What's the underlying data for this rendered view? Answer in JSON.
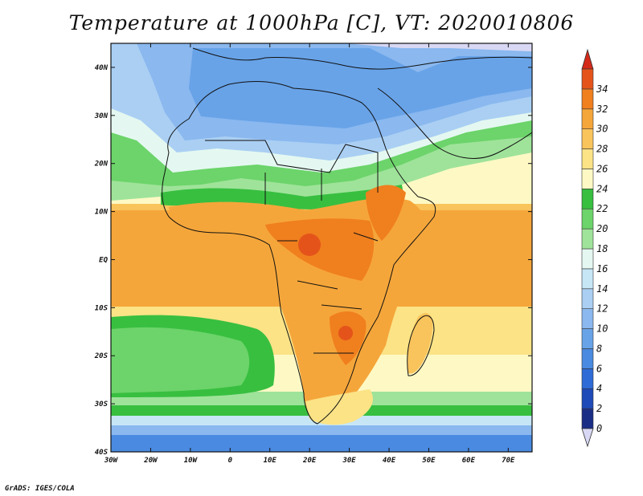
{
  "title": "Temperature at 1000hPa [C], VT: 2020010806",
  "footer": "GrADS: IGES/COLA",
  "map": {
    "lon_range": [
      -30,
      76
    ],
    "lat_range": [
      -40,
      45
    ],
    "lon_ticks": [
      {
        "value": -30,
        "label": "30W"
      },
      {
        "value": -20,
        "label": "20W"
      },
      {
        "value": -10,
        "label": "10W"
      },
      {
        "value": 0,
        "label": "0"
      },
      {
        "value": 10,
        "label": "10E"
      },
      {
        "value": 20,
        "label": "20E"
      },
      {
        "value": 30,
        "label": "30E"
      },
      {
        "value": 40,
        "label": "40E"
      },
      {
        "value": 50,
        "label": "50E"
      },
      {
        "value": 60,
        "label": "60E"
      },
      {
        "value": 70,
        "label": "70E"
      }
    ],
    "lat_ticks": [
      {
        "value": 40,
        "label": "40N"
      },
      {
        "value": 30,
        "label": "30N"
      },
      {
        "value": 20,
        "label": "20N"
      },
      {
        "value": 10,
        "label": "10N"
      },
      {
        "value": 0,
        "label": "EQ"
      },
      {
        "value": -10,
        "label": "10S"
      },
      {
        "value": -20,
        "label": "20S"
      },
      {
        "value": -30,
        "label": "30S"
      },
      {
        "value": -40,
        "label": "40S"
      }
    ],
    "below_min_color": "#d8d8f4",
    "above_max_color": "#d42a1a"
  },
  "colorbar": {
    "levels": [
      0,
      2,
      4,
      6,
      8,
      10,
      12,
      14,
      16,
      18,
      20,
      22,
      24,
      26,
      28,
      30,
      32,
      34
    ],
    "colors": [
      "#1b2e86",
      "#1f4bb8",
      "#2e6bd6",
      "#4a8ae0",
      "#68a3e8",
      "#8ab8ef",
      "#aacff3",
      "#c6e6f6",
      "#e4f8f1",
      "#9fe39a",
      "#6cd46a",
      "#38bf40",
      "#fef9c4",
      "#fbe386",
      "#f9c45c",
      "#f5a63a",
      "#f07f1e",
      "#e4541a"
    ]
  }
}
